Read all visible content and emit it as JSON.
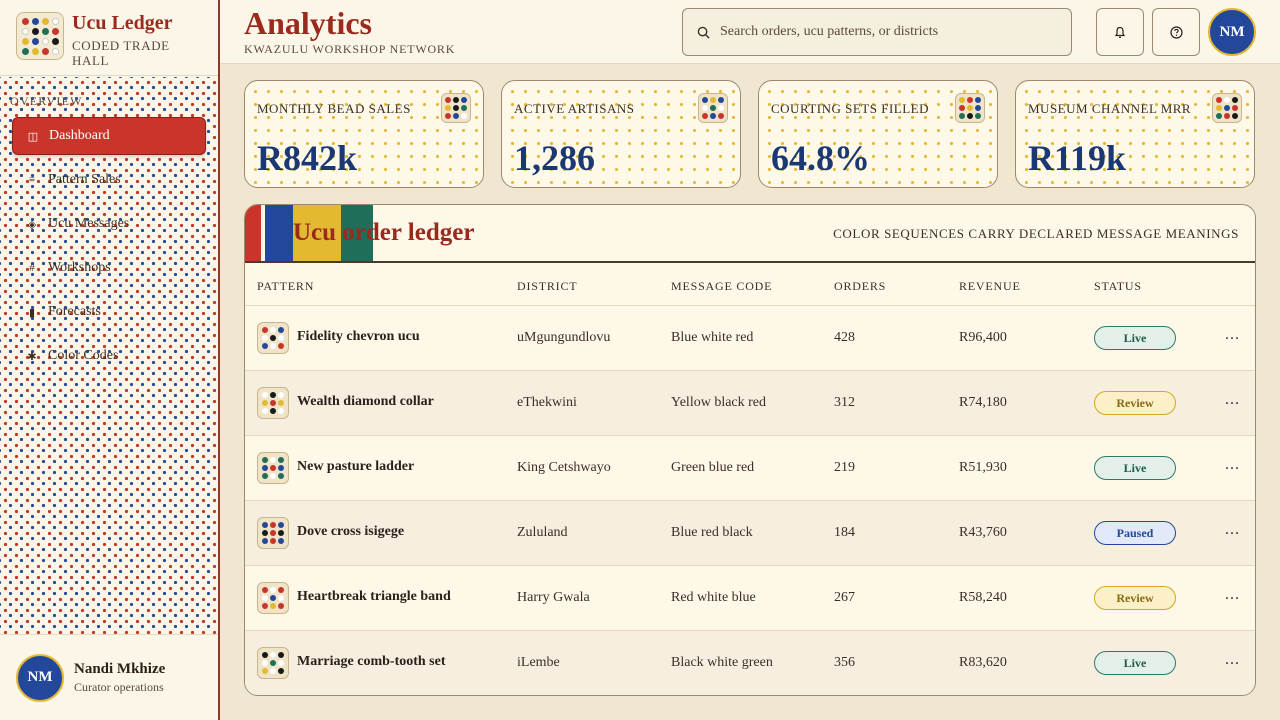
{
  "colors": {
    "red": "#c9352a",
    "blue": "#23479a",
    "yellow": "#e2b931",
    "green": "#1f6e5a",
    "black": "#1a1a1a",
    "white": "#ffffff"
  },
  "sidebar": {
    "brand_title": "Ucu Ledger",
    "brand_subtitle": "CODED TRADE HALL",
    "section_label": "OVERVIEW",
    "items": [
      {
        "label": "Dashboard",
        "icon": "dashboard-icon",
        "active": true
      },
      {
        "label": "Pattern Sales",
        "icon": "pattern-sales-icon",
        "active": false
      },
      {
        "label": "Ucu Messages",
        "icon": "diamond-icon",
        "active": false
      },
      {
        "label": "Workshops",
        "icon": "grid-icon",
        "active": false
      },
      {
        "label": "Forecasts",
        "icon": "bars-icon",
        "active": false
      },
      {
        "label": "Color Codes",
        "icon": "sparkle-icon",
        "active": false
      }
    ],
    "profile": {
      "initials": "NM",
      "name": "Nandi Mkhize",
      "role": "Curator operations"
    }
  },
  "header": {
    "title": "Analytics",
    "subtitle": "KWAZULU WORKSHOP NETWORK",
    "search_placeholder": "Search orders, ucu patterns, or districts",
    "avatar_initials": "NM"
  },
  "kpis": [
    {
      "label": "MONTHLY BEAD SALES",
      "value": "R842k"
    },
    {
      "label": "ACTIVE ARTISANS",
      "value": "1,286"
    },
    {
      "label": "COURTING SETS FILLED",
      "value": "64.8%"
    },
    {
      "label": "MUSEUM CHANNEL MRR",
      "value": "R119k"
    }
  ],
  "table": {
    "title": "Ucu order ledger",
    "note": "COLOR SEQUENCES CARRY DECLARED MESSAGE MEANINGS",
    "columns": [
      "PATTERN",
      "DISTRICT",
      "MESSAGE CODE",
      "ORDERS",
      "REVENUE",
      "STATUS"
    ],
    "rows": [
      {
        "pattern": "Fidelity chevron ucu",
        "district": "uMgungundlovu",
        "message": "Blue white red",
        "orders": "428",
        "revenue": "R96,400",
        "status": "Live"
      },
      {
        "pattern": "Wealth diamond collar",
        "district": "eThekwini",
        "message": "Yellow black red",
        "orders": "312",
        "revenue": "R74,180",
        "status": "Review"
      },
      {
        "pattern": "New pasture ladder",
        "district": "King Cetshwayo",
        "message": "Green blue red",
        "orders": "219",
        "revenue": "R51,930",
        "status": "Live"
      },
      {
        "pattern": "Dove cross isigege",
        "district": "Zululand",
        "message": "Blue red black",
        "orders": "184",
        "revenue": "R43,760",
        "status": "Paused"
      },
      {
        "pattern": "Heartbreak triangle band",
        "district": "Harry Gwala",
        "message": "Red white blue",
        "orders": "267",
        "revenue": "R58,240",
        "status": "Review"
      },
      {
        "pattern": "Marriage comb-tooth set",
        "district": "iLembe",
        "message": "Black white green",
        "orders": "356",
        "revenue": "R83,620",
        "status": "Live"
      }
    ],
    "more_label": "..."
  }
}
